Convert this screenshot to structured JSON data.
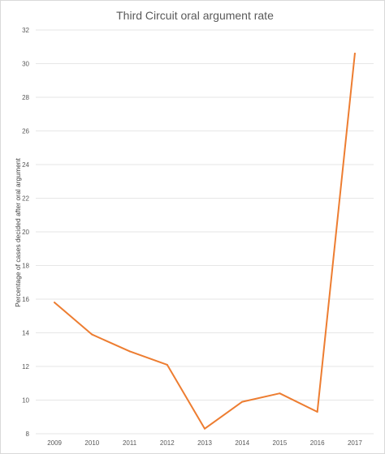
{
  "chart_data": {
    "type": "line",
    "title": "Third Circuit oral argument rate",
    "xlabel": "",
    "ylabel": "Percentage of cases decided after oral argument",
    "categories": [
      "2009",
      "2010",
      "2011",
      "2012",
      "2013",
      "2014",
      "2015",
      "2016",
      "2017"
    ],
    "series": [
      {
        "values": [
          15.8,
          13.9,
          12.9,
          12.1,
          8.3,
          9.9,
          10.4,
          9.3,
          30.6
        ]
      }
    ],
    "ylim": [
      8,
      32
    ],
    "yticks": [
      "8",
      "10",
      "12",
      "14",
      "16",
      "18",
      "20",
      "22",
      "24",
      "26",
      "28",
      "30",
      "32"
    ],
    "grid": true,
    "line_color": "#ed7d31"
  }
}
